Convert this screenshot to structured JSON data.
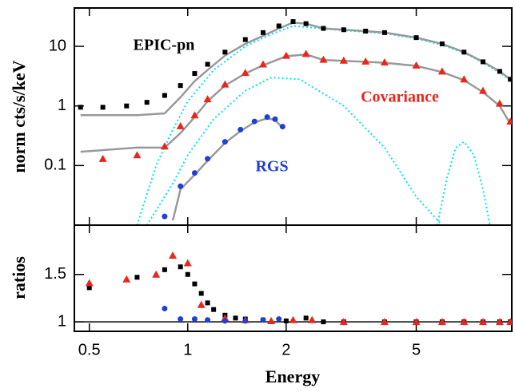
{
  "chart_data": [
    {
      "type": "scatter",
      "ylabel": "norm cts/s/keV",
      "xlog": true,
      "ylog": true,
      "xlim": [
        0.45,
        9.8
      ],
      "ylim": [
        0.01,
        44
      ],
      "xticks": [
        0.5,
        1,
        2,
        5
      ],
      "yticks": [
        0.1,
        1,
        10
      ],
      "series": [
        {
          "color": "#00e5ee",
          "mode": "line",
          "style": "dotted",
          "x": [
            0.75,
            0.9,
            1,
            1.2,
            1.5,
            1.8,
            2.2,
            3,
            4,
            5,
            6
          ],
          "values": [
            0.01,
            0.05,
            0.15,
            0.6,
            1.8,
            3,
            2.8,
            1,
            0.2,
            0.03,
            0.01
          ]
        },
        {
          "color": "#00e5ee",
          "mode": "line",
          "style": "dotted",
          "x": [
            5.8,
            6.2,
            6.6,
            7,
            7.5,
            8,
            8.4
          ],
          "values": [
            0.01,
            0.06,
            0.2,
            0.25,
            0.15,
            0.04,
            0.01
          ]
        },
        {
          "color": "#00e5ee",
          "mode": "line",
          "style": "dotted",
          "x": [
            0.7,
            0.8,
            0.9,
            1,
            1.2,
            1.5,
            1.8,
            2.1,
            2.3,
            3,
            4,
            5,
            6,
            7,
            8,
            9,
            9.7
          ],
          "values": [
            0.01,
            0.1,
            0.4,
            1.2,
            4,
            10,
            16,
            22,
            21,
            18.5,
            16.5,
            13.5,
            10.5,
            7.8,
            5.3,
            3.6,
            2.7
          ]
        },
        {
          "color": "#999999",
          "mode": "line",
          "style": "solid",
          "x": [
            0.47,
            0.7,
            0.85,
            0.95,
            1.05,
            1.15,
            1.3,
            1.5,
            1.7,
            1.9,
            2.1,
            2.3,
            2.6,
            3,
            3.5,
            4,
            5,
            6,
            7,
            8,
            9,
            9.7
          ],
          "values": [
            0.7,
            0.7,
            0.75,
            1.4,
            2.6,
            4,
            7,
            11,
            15,
            20,
            25,
            24,
            20,
            19,
            18,
            17,
            14,
            11,
            8,
            5.5,
            3.8,
            2.8
          ]
        },
        {
          "color": "#999999",
          "mode": "line",
          "style": "solid",
          "x": [
            0.47,
            0.7,
            0.85,
            0.95,
            1.05,
            1.15,
            1.3,
            1.5,
            1.7,
            2,
            2.3,
            2.6,
            3,
            3.5,
            4,
            5,
            6,
            7,
            8,
            9,
            9.7
          ],
          "values": [
            0.17,
            0.2,
            0.2,
            0.35,
            0.65,
            1.2,
            2.2,
            3.5,
            4.8,
            6.8,
            7.3,
            5.9,
            5.7,
            5.5,
            5.3,
            4.7,
            3.7,
            2.7,
            1.7,
            1,
            0.5
          ]
        },
        {
          "color": "#999999",
          "mode": "line",
          "style": "solid",
          "x": [
            0.9,
            0.95,
            1.05,
            1.15,
            1.3,
            1.45,
            1.6,
            1.75,
            1.85,
            1.95
          ],
          "values": [
            0.012,
            0.04,
            0.07,
            0.12,
            0.24,
            0.38,
            0.53,
            0.62,
            0.58,
            0.43
          ]
        },
        {
          "name": "EPIC-pn",
          "color": "#000000",
          "mode": "markers",
          "marker": "square",
          "x": [
            0.47,
            0.55,
            0.65,
            0.75,
            0.85,
            0.95,
            1.05,
            1.15,
            1.3,
            1.5,
            1.7,
            1.9,
            2.1,
            2.3,
            2.6,
            3,
            3.5,
            4,
            5,
            6,
            7,
            8,
            9,
            9.7
          ],
          "values": [
            0.95,
            0.95,
            1,
            1.15,
            1.5,
            2.2,
            3.5,
            5,
            8,
            13,
            17,
            22,
            26,
            24,
            20,
            19,
            18,
            17,
            14,
            11,
            8,
            5.5,
            3.8,
            2.8
          ]
        },
        {
          "name": "Covariance",
          "color": "#e8261c",
          "mode": "markers",
          "marker": "triangle",
          "x": [
            0.55,
            0.7,
            0.85,
            0.95,
            1.05,
            1.15,
            1.3,
            1.5,
            1.7,
            2,
            2.3,
            2.6,
            3,
            3.5,
            4,
            5,
            6,
            7,
            8,
            9,
            9.7
          ],
          "values": [
            0.13,
            0.15,
            0.21,
            0.46,
            0.7,
            1.3,
            2.3,
            3.6,
            5,
            7,
            7.5,
            6,
            5.8,
            5.6,
            5.4,
            4.8,
            3.8,
            2.8,
            1.8,
            1.1,
            0.55
          ]
        },
        {
          "name": "RGS",
          "color": "#1f3fd6",
          "mode": "markers",
          "marker": "circle",
          "x": [
            0.85,
            0.95,
            1.05,
            1.15,
            1.3,
            1.45,
            1.6,
            1.75,
            1.85,
            1.95
          ],
          "values": [
            0.014,
            0.045,
            0.075,
            0.13,
            0.25,
            0.4,
            0.55,
            0.65,
            0.6,
            0.45
          ]
        }
      ]
    },
    {
      "type": "scatter",
      "ylabel": "ratios",
      "xlabel": "Energy",
      "xlog": true,
      "ylog": false,
      "xlim": [
        0.45,
        9.8
      ],
      "ylim": [
        0.9,
        2.02
      ],
      "xticks": [
        0.5,
        1,
        2,
        5
      ],
      "yticks": [
        1,
        1.5
      ],
      "hline": 1,
      "series": [
        {
          "color": "#000000",
          "mode": "markers",
          "marker": "square",
          "x": [
            0.5,
            0.7,
            0.85,
            0.95,
            1,
            1.05,
            1.1,
            1.15,
            1.2,
            1.3,
            1.4,
            1.5,
            1.7,
            2,
            2.3,
            2.6,
            3,
            4,
            5,
            6,
            7,
            8,
            9,
            9.7
          ],
          "values": [
            1.36,
            1.47,
            1.55,
            1.58,
            1.5,
            1.4,
            1.3,
            1.2,
            1.13,
            1.07,
            1.04,
            1.03,
            1.02,
            1.01,
            1.04,
            1,
            1,
            1,
            1,
            1,
            1,
            1,
            1,
            1
          ]
        },
        {
          "color": "#e8261c",
          "mode": "markers",
          "marker": "triangle",
          "x": [
            0.5,
            0.65,
            0.8,
            0.9,
            1,
            1.1,
            1.3,
            1.5,
            1.8,
            2.1,
            2.4,
            3,
            4,
            5,
            6,
            7,
            8,
            9,
            9.7
          ],
          "values": [
            1.41,
            1.45,
            1.5,
            1.7,
            1.62,
            1.18,
            1.04,
            1.02,
            1.01,
            1.02,
            1.02,
            1,
            1,
            1,
            1,
            1,
            1,
            1,
            1
          ]
        },
        {
          "color": "#1f3fd6",
          "mode": "markers",
          "marker": "circle",
          "x": [
            0.85,
            0.95,
            1.05,
            1.15,
            1.3,
            1.5,
            1.7,
            1.9
          ],
          "values": [
            1.14,
            1.03,
            1.03,
            1.02,
            1.01,
            1.01,
            1.02,
            1.03
          ]
        }
      ]
    }
  ]
}
